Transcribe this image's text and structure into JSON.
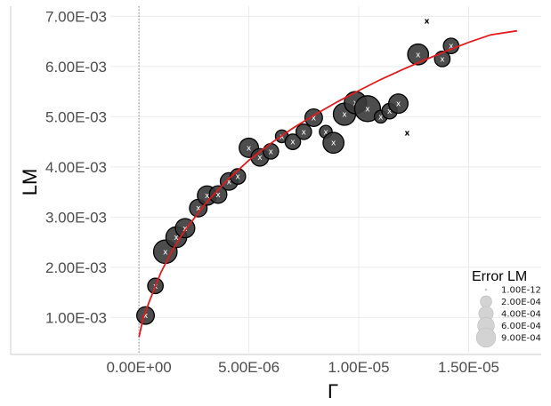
{
  "chart_data": {
    "type": "scatter",
    "title": "",
    "xlabel": "Γ",
    "ylabel": "LM",
    "xlim": [
      -1.3e-06,
      1.83e-05
    ],
    "ylim": [
      0.0003,
      0.0072
    ],
    "x_ticks": [
      0,
      5e-06,
      1e-05,
      1.5e-05
    ],
    "x_tick_labels": [
      "0.00E+00",
      "5.00E-06",
      "1.00E-05",
      "1.50E-05"
    ],
    "y_ticks": [
      0.001,
      0.002,
      0.003,
      0.004,
      0.005,
      0.006,
      0.007
    ],
    "y_tick_labels": [
      "1.00E-03",
      "2.00E-03",
      "3.00E-03",
      "4.00E-03",
      "5.00E-03",
      "6.00E-03",
      "7.00E-03"
    ],
    "grid": true,
    "vertical_reference_line_x": 0,
    "point_marker": "x",
    "point_size_variable": "Error LM",
    "legend": {
      "title": "Error LM",
      "position": "bottom-right",
      "entries": [
        "1.00E-12",
        "2.00E-04",
        "4.00E-04",
        "6.00E-04",
        "9.00E-04"
      ],
      "sizes": [
        1e-12,
        0.0002,
        0.0004,
        0.0006,
        0.0009
      ]
    },
    "points": [
      {
        "x": 3e-07,
        "y": 0.00104,
        "error": 0.0003
      },
      {
        "x": 7.5e-07,
        "y": 0.00163,
        "error": 0.0002
      },
      {
        "x": 1.2e-06,
        "y": 0.00231,
        "error": 0.0007
      },
      {
        "x": 1.7e-06,
        "y": 0.0026,
        "error": 0.0005
      },
      {
        "x": 2.1e-06,
        "y": 0.00278,
        "error": 0.0004
      },
      {
        "x": 2.7e-06,
        "y": 0.00318,
        "error": 0.0003
      },
      {
        "x": 3.1e-06,
        "y": 0.00343,
        "error": 0.0004
      },
      {
        "x": 3.6e-06,
        "y": 0.00345,
        "error": 0.0003
      },
      {
        "x": 4.1e-06,
        "y": 0.00371,
        "error": 0.0003
      },
      {
        "x": 4.5e-06,
        "y": 0.00381,
        "error": 0.0002
      },
      {
        "x": 5e-06,
        "y": 0.00438,
        "error": 0.0004
      },
      {
        "x": 5.5e-06,
        "y": 0.00419,
        "error": 0.0003
      },
      {
        "x": 6e-06,
        "y": 0.00431,
        "error": 0.0002
      },
      {
        "x": 6.5e-06,
        "y": 0.00461,
        "error": 0.0001
      },
      {
        "x": 7e-06,
        "y": 0.0045,
        "error": 0.0002
      },
      {
        "x": 7.5e-06,
        "y": 0.0047,
        "error": 0.0002
      },
      {
        "x": 7.95e-06,
        "y": 0.00498,
        "error": 0.0003
      },
      {
        "x": 8.5e-06,
        "y": 0.0047,
        "error": 0.0001
      },
      {
        "x": 8.85e-06,
        "y": 0.00448,
        "error": 0.0005
      },
      {
        "x": 9.35e-06,
        "y": 0.00505,
        "error": 0.0006
      },
      {
        "x": 9.85e-06,
        "y": 0.00528,
        "error": 0.0006
      },
      {
        "x": 1.04e-05,
        "y": 0.00516,
        "error": 0.0009
      },
      {
        "x": 1.1e-05,
        "y": 0.005,
        "error": 0.0001
      },
      {
        "x": 1.14e-05,
        "y": 0.00511,
        "error": 0.0002
      },
      {
        "x": 1.18e-05,
        "y": 0.00526,
        "error": 0.0004
      },
      {
        "x": 1.22e-05,
        "y": 0.00468,
        "error": 0.0
      },
      {
        "x": 1.27e-05,
        "y": 0.00624,
        "error": 0.0005
      },
      {
        "x": 1.31e-05,
        "y": 0.00691,
        "error": 0.0
      },
      {
        "x": 1.38e-05,
        "y": 0.00615,
        "error": 0.0002
      },
      {
        "x": 1.42e-05,
        "y": 0.00641,
        "error": 0.0002
      }
    ],
    "fit_line": {
      "color": "#e41a1c",
      "points": [
        [
          0,
          0.00061
        ],
        [
          2e-07,
          0.001
        ],
        [
          5e-07,
          0.00135
        ],
        [
          1e-06,
          0.0019
        ],
        [
          1.5e-06,
          0.00232
        ],
        [
          2e-06,
          0.00268
        ],
        [
          3e-06,
          0.00326
        ],
        [
          4e-06,
          0.00373
        ],
        [
          5e-06,
          0.00413
        ],
        [
          6e-06,
          0.00447
        ],
        [
          7e-06,
          0.00477
        ],
        [
          8e-06,
          0.00504
        ],
        [
          9e-06,
          0.00529
        ],
        [
          1e-05,
          0.00552
        ],
        [
          1.1e-05,
          0.00574
        ],
        [
          1.2e-05,
          0.00594
        ],
        [
          1.3e-05,
          0.00613
        ],
        [
          1.4e-05,
          0.00631
        ],
        [
          1.5e-05,
          0.00648
        ],
        [
          1.6e-05,
          0.00663
        ],
        [
          1.72e-05,
          0.00671
        ]
      ]
    },
    "colors": {
      "point_fill": "#3a3a3a",
      "point_outline": "#000000",
      "marker": "#ffffff",
      "legend_fill": "#d3d3d3",
      "grid": "#ebebeb",
      "axis": "#cccccc"
    }
  }
}
